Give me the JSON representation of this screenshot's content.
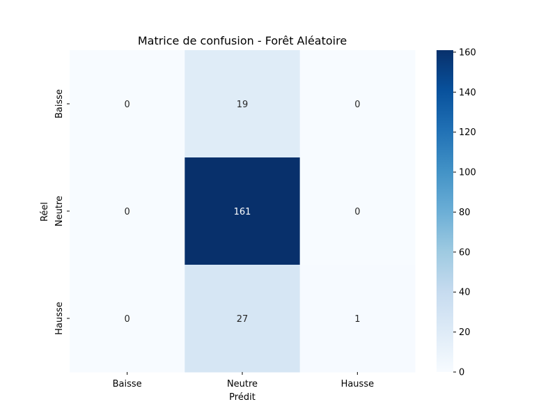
{
  "chart_data": {
    "type": "heatmap",
    "title": "Matrice de confusion - Forêt Aléatoire",
    "xlabel": "Prédit",
    "ylabel": "Réel",
    "x_categories": [
      "Baisse",
      "Neutre",
      "Hausse"
    ],
    "y_categories": [
      "Baisse",
      "Neutre",
      "Hausse"
    ],
    "values": [
      [
        0,
        19,
        0
      ],
      [
        0,
        161,
        0
      ],
      [
        0,
        27,
        1
      ]
    ],
    "colormap": "Blues",
    "color_range": [
      0,
      161
    ],
    "colorbar_ticks": [
      0,
      20,
      40,
      60,
      80,
      100,
      120,
      140,
      160
    ],
    "grid": false
  }
}
